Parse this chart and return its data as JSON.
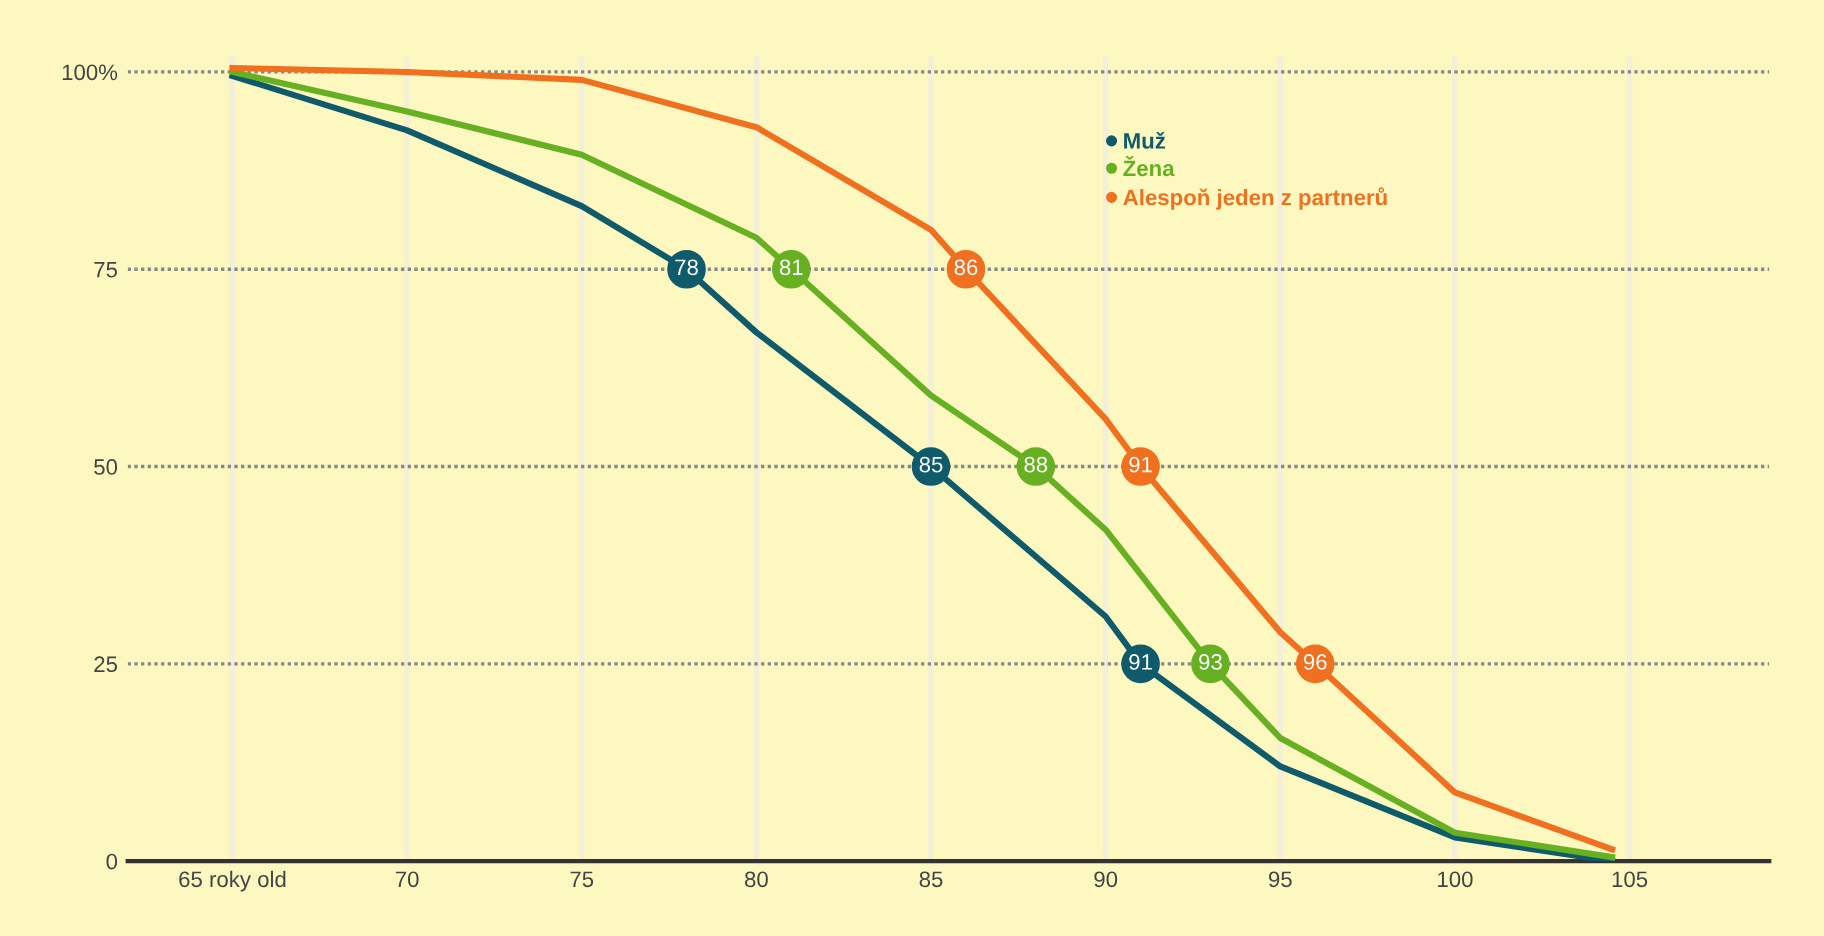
{
  "chart_data": {
    "type": "line",
    "series": [
      {
        "name": "Muž",
        "color": "#0f5a6b",
        "x": [
          65,
          70,
          75,
          78,
          80,
          85,
          90,
          91,
          95,
          100,
          104.5
        ],
        "values": [
          99.5,
          92.6,
          83,
          75,
          67,
          50,
          31,
          25,
          12,
          3,
          0
        ]
      },
      {
        "name": "Žena",
        "color": "#66b022",
        "x": [
          65,
          70,
          75,
          80,
          81,
          85,
          88,
          90,
          93,
          95,
          100,
          104.5
        ],
        "values": [
          100,
          95,
          89.5,
          79,
          75,
          59,
          50,
          42,
          25,
          15.6,
          3.6,
          0.5
        ]
      },
      {
        "name": "Alespoň jeden z partnerů",
        "color": "#f07020",
        "x": [
          65,
          70,
          75,
          80,
          85,
          86,
          90,
          91,
          95,
          96,
          100,
          104.5
        ],
        "values": [
          100.5,
          100,
          99,
          93,
          80,
          75,
          56,
          50,
          29,
          25,
          8.7,
          1.5
        ]
      }
    ],
    "annotations": [
      {
        "text": "78",
        "x": 78,
        "y": 75
      },
      {
        "text": "85",
        "x": 85,
        "y": 50
      },
      {
        "text": "91",
        "x": 91,
        "y": 25
      },
      {
        "text": "81",
        "x": 81,
        "y": 75
      },
      {
        "text": "88",
        "x": 88,
        "y": 50
      },
      {
        "text": "93",
        "x": 93,
        "y": 25
      },
      {
        "text": "86",
        "x": 86,
        "y": 75
      },
      {
        "text": "91",
        "x": 91,
        "y": 50
      },
      {
        "text": "96",
        "x": 96,
        "y": 25
      }
    ],
    "xlim": [
      62,
      109
    ],
    "xticks": [
      {
        "value": 65,
        "label": "65 roky old"
      },
      70,
      75,
      80,
      85,
      90,
      95,
      100,
      105
    ],
    "ylim": [
      0,
      102
    ],
    "yticks": [
      0,
      25,
      50,
      75,
      {
        "value": 100,
        "label": "100%"
      }
    ],
    "grid": true,
    "legend": "top right",
    "line_style": "solid",
    "marker": "none"
  }
}
